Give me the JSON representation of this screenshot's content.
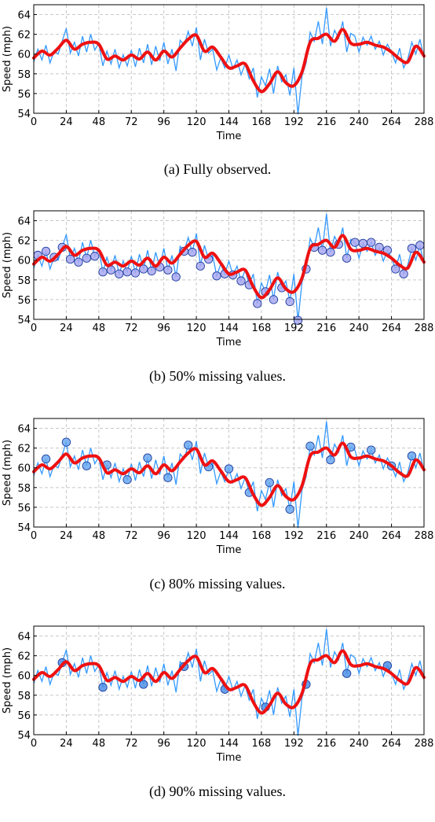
{
  "chart_data": [
    {
      "panel": "a",
      "type": "line",
      "caption": "(a)  Fully observed.",
      "xlabel": "Time",
      "ylabel": "Speed (mph)",
      "xlim": [
        0,
        288
      ],
      "ylim": [
        54,
        65
      ],
      "xticks": [
        0,
        24,
        48,
        72,
        96,
        120,
        144,
        168,
        192,
        216,
        240,
        264,
        288
      ],
      "yticks": [
        54,
        56,
        58,
        60,
        62,
        64
      ],
      "grid": true,
      "observed_frac": 1.0,
      "smooth_color": "#ee1111",
      "raw_color": "#3399ff",
      "marker_fill": "#7ab2f0"
    },
    {
      "panel": "b",
      "type": "line",
      "caption": "(b)  50% missing values.",
      "xlabel": "Time",
      "ylabel": "Speed (mph)",
      "xlim": [
        0,
        288
      ],
      "ylim": [
        54,
        65
      ],
      "xticks": [
        0,
        24,
        48,
        72,
        96,
        120,
        144,
        168,
        192,
        216,
        240,
        264,
        288
      ],
      "yticks": [
        54,
        56,
        58,
        60,
        62,
        64
      ],
      "grid": true,
      "observed_frac": 0.5,
      "smooth_color": "#ee1111",
      "raw_color": "#3399ff",
      "marker_fill": "#a9a8f0"
    },
    {
      "panel": "c",
      "type": "line",
      "caption": "(c)  80% missing values.",
      "xlabel": "Time",
      "ylabel": "Speed (mph)",
      "xlim": [
        0,
        288
      ],
      "ylim": [
        54,
        65
      ],
      "xticks": [
        0,
        24,
        48,
        72,
        96,
        120,
        144,
        168,
        192,
        216,
        240,
        264,
        288
      ],
      "yticks": [
        54,
        56,
        58,
        60,
        62,
        64
      ],
      "grid": true,
      "observed_frac": 0.2,
      "smooth_color": "#ee1111",
      "raw_color": "#3399ff",
      "marker_fill": "#6aa8f0"
    },
    {
      "panel": "d",
      "type": "line",
      "caption": "(d)  90% missing values.",
      "xlabel": "Time",
      "ylabel": "Speed (mph)",
      "xlim": [
        0,
        288
      ],
      "ylim": [
        54,
        65
      ],
      "xticks": [
        0,
        24,
        48,
        72,
        96,
        120,
        144,
        168,
        192,
        216,
        240,
        264,
        288
      ],
      "yticks": [
        54,
        56,
        58,
        60,
        62,
        64
      ],
      "grid": true,
      "observed_frac": 0.1,
      "smooth_color": "#ee1111",
      "raw_color": "#3399ff",
      "marker_fill": "#4d8fe6"
    }
  ],
  "series_shape": {
    "smooth_x": [
      0,
      6,
      12,
      18,
      24,
      30,
      36,
      42,
      48,
      54,
      60,
      66,
      72,
      78,
      84,
      90,
      96,
      102,
      108,
      114,
      120,
      126,
      132,
      138,
      144,
      150,
      156,
      162,
      168,
      174,
      180,
      186,
      192,
      198,
      204,
      210,
      216,
      222,
      228,
      234,
      240,
      246,
      252,
      258,
      264,
      270,
      276,
      282,
      288
    ],
    "smooth_y": [
      59.6,
      60.3,
      59.9,
      60.6,
      61.4,
      60.5,
      61.0,
      61.2,
      61.0,
      59.5,
      59.8,
      59.4,
      59.9,
      59.5,
      60.2,
      59.4,
      60.3,
      59.7,
      60.6,
      61.5,
      61.9,
      60.3,
      60.7,
      59.7,
      58.6,
      58.8,
      59.0,
      57.3,
      56.2,
      57.0,
      58.2,
      57.1,
      56.8,
      58.2,
      61.2,
      61.6,
      62.0,
      61.3,
      62.5,
      61.1,
      61.0,
      61.2,
      60.9,
      60.7,
      60.2,
      59.5,
      59.2,
      60.8,
      59.8
    ],
    "raw_x": [
      0,
      3,
      6,
      9,
      12,
      15,
      18,
      21,
      24,
      27,
      30,
      33,
      36,
      39,
      42,
      45,
      48,
      51,
      54,
      57,
      60,
      63,
      66,
      69,
      72,
      75,
      78,
      81,
      84,
      87,
      90,
      93,
      96,
      99,
      102,
      105,
      108,
      111,
      114,
      117,
      120,
      123,
      126,
      129,
      132,
      135,
      138,
      141,
      144,
      147,
      150,
      153,
      156,
      159,
      162,
      165,
      168,
      171,
      174,
      177,
      180,
      183,
      186,
      189,
      192,
      195,
      198,
      201,
      204,
      207,
      210,
      213,
      216,
      219,
      222,
      225,
      228,
      231,
      234,
      237,
      240,
      243,
      246,
      249,
      252,
      255,
      258,
      261,
      264,
      267,
      270,
      273,
      276,
      279,
      282,
      285,
      288
    ],
    "raw_y": [
      59.2,
      60.5,
      59.4,
      60.9,
      59.1,
      60.3,
      60.0,
      61.3,
      62.6,
      60.1,
      61.2,
      59.8,
      61.8,
      60.2,
      62.0,
      60.4,
      61.1,
      58.8,
      60.3,
      59.0,
      60.5,
      58.6,
      59.9,
      58.8,
      60.4,
      58.7,
      60.6,
      59.1,
      61.0,
      58.9,
      60.8,
      59.3,
      61.2,
      59.0,
      60.5,
      58.3,
      61.4,
      60.9,
      62.3,
      60.8,
      62.7,
      59.4,
      61.5,
      60.1,
      60.5,
      58.4,
      59.6,
      58.6,
      59.9,
      58.5,
      59.4,
      57.9,
      59.0,
      57.5,
      58.6,
      55.6,
      57.7,
      56.8,
      58.5,
      56.0,
      58.8,
      57.2,
      57.9,
      55.8,
      58.6,
      53.9,
      57.8,
      59.1,
      62.2,
      61.3,
      63.3,
      61.0,
      64.7,
      60.8,
      62.4,
      61.6,
      63.3,
      60.2,
      62.1,
      61.8,
      60.2,
      61.7,
      60.9,
      61.8,
      60.5,
      61.3,
      59.9,
      61.0,
      60.2,
      59.1,
      60.6,
      58.6,
      59.5,
      61.2,
      60.0,
      61.5,
      59.6
    ]
  }
}
